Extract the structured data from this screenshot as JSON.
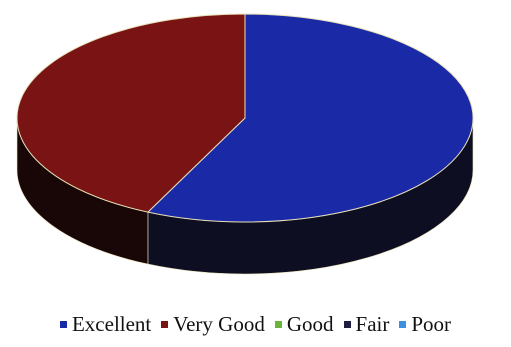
{
  "chart_data": {
    "type": "pie",
    "style": "3d",
    "categories": [
      "Excellent",
      "Very Good",
      "Good",
      "Fair",
      "Poor"
    ],
    "values": [
      57,
      43,
      0,
      0,
      0
    ],
    "colors": [
      "#1a2aa6",
      "#7a1414",
      "#6cb33a",
      "#1e1e40",
      "#3d8fe0"
    ],
    "side_colors": [
      "#0e0e22",
      "#190707",
      "#1a2a10",
      "#08080f",
      "#0c1f33"
    ],
    "legend_position": "bottom",
    "title": ""
  }
}
